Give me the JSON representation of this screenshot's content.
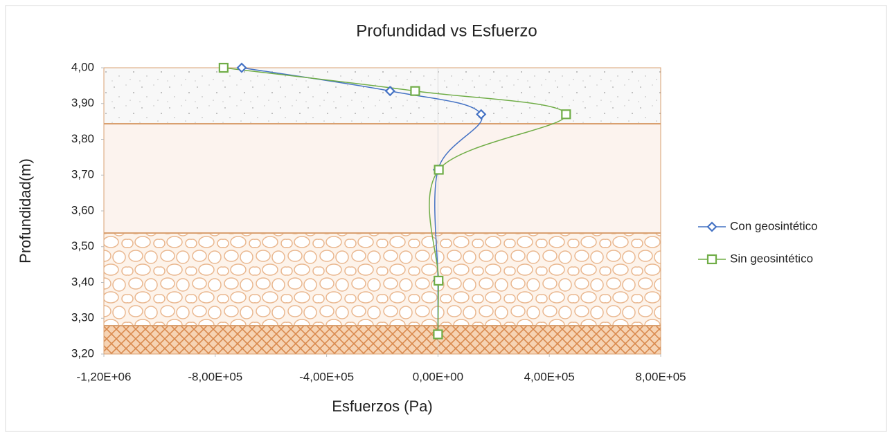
{
  "chart_data": {
    "type": "scatter",
    "title": "Profundidad vs Esfuerzo",
    "x_label": "Esfuerzos (Pa)",
    "y_label": "Profundidad(m)",
    "xlim": [
      -1200000,
      800000
    ],
    "xticks": [
      {
        "value": -1200000,
        "label": "-1,20E+06"
      },
      {
        "value": -800000,
        "label": "-8,00E+05"
      },
      {
        "value": -400000,
        "label": "-4,00E+05"
      },
      {
        "value": 0,
        "label": "0,00E+00"
      },
      {
        "value": 400000,
        "label": "4,00E+05"
      },
      {
        "value": 800000,
        "label": "8,00E+05"
      }
    ],
    "ylim": [
      3.2,
      4.0
    ],
    "yticks": [
      {
        "value": 3.2,
        "label": "3,20"
      },
      {
        "value": 3.3,
        "label": "3,30"
      },
      {
        "value": 3.4,
        "label": "3,40"
      },
      {
        "value": 3.5,
        "label": "3,50"
      },
      {
        "value": 3.6,
        "label": "3,60"
      },
      {
        "value": 3.7,
        "label": "3,70"
      },
      {
        "value": 3.8,
        "label": "3,80"
      },
      {
        "value": 3.9,
        "label": "3,90"
      },
      {
        "value": 4.0,
        "label": "4,00"
      }
    ],
    "series": [
      {
        "name": "Con geosintético",
        "color": "#4472c4",
        "marker": "diamond",
        "x": [
          -705000,
          -172000,
          155000,
          0,
          0,
          0
        ],
        "y": [
          4.0,
          3.935,
          3.87,
          3.715,
          3.405,
          3.255
        ]
      },
      {
        "name": "Sin geosintético",
        "color": "#70ad47",
        "marker": "square",
        "x": [
          -770000,
          -82000,
          460000,
          3000,
          2000,
          0
        ],
        "y": [
          4.0,
          3.935,
          3.87,
          3.715,
          3.405,
          3.255
        ]
      }
    ],
    "legend": "right",
    "grid": false
  }
}
